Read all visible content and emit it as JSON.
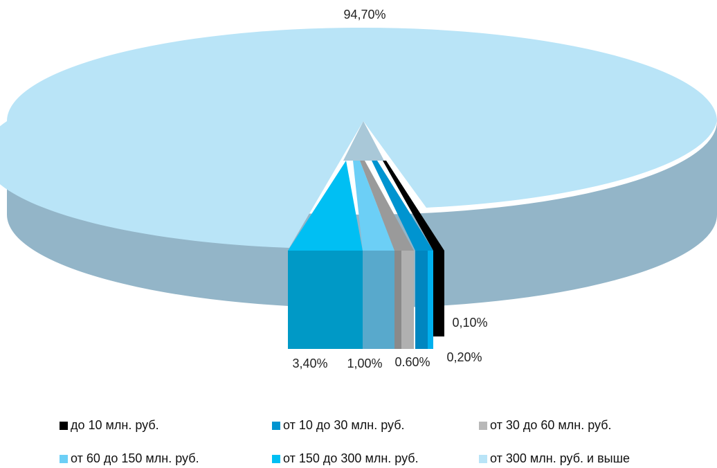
{
  "chart_data": {
    "type": "pie",
    "title": "",
    "categories": [
      "до 10 млн. руб.",
      "от 10 до 30 млн. руб.",
      "от 30 до 60 млн. руб.",
      "от 60 до 150 млн. руб.",
      "от 150 до 300 млн. руб.",
      "от 300 млн. руб. и выше"
    ],
    "values": [
      0.1,
      0.2,
      0.6,
      1.0,
      3.4,
      94.7
    ],
    "data_labels": [
      "0,10%",
      "0,20%",
      "0.60%",
      "1,00%",
      "3,40%",
      "94,70%"
    ],
    "colors": [
      "#000000",
      "#0094d0",
      "#b8b8b8",
      "#6ccff6",
      "#00bff3",
      "#b9e4f7"
    ],
    "legend_position": "bottom"
  }
}
